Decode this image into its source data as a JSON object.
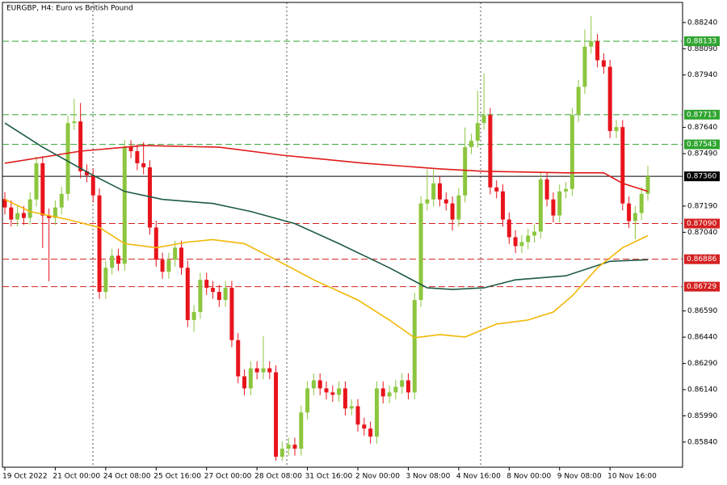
{
  "chart_data": {
    "type": "candlestick",
    "title": "EURGBP, H4:  Euro vs British Pound",
    "up_color": "#8cc63f",
    "down_color": "#e8141c",
    "categories": [
      "19 Oct 2022",
      null,
      null,
      null,
      null,
      null,
      null,
      null,
      "21 Oct 00:00",
      null,
      null,
      null,
      null,
      null,
      null,
      null,
      "24 Oct 08:00",
      null,
      null,
      null,
      null,
      null,
      null,
      null,
      "25 Oct 16:00",
      null,
      null,
      null,
      null,
      null,
      null,
      null,
      "27 Oct 00:00",
      null,
      null,
      null,
      null,
      null,
      null,
      null,
      "28 Oct 08:00",
      null,
      null,
      null,
      null,
      null,
      null,
      null,
      "31 Oct 16:00",
      null,
      null,
      null,
      null,
      null,
      null,
      null,
      "2 Nov 00:00",
      null,
      null,
      null,
      null,
      null,
      null,
      null,
      "3 Nov 08:00",
      null,
      null,
      null,
      null,
      null,
      null,
      null,
      "4 Nov 16:00",
      null,
      null,
      null,
      null,
      null,
      null,
      null,
      "8 Nov 00:00",
      null,
      null,
      null,
      null,
      null,
      null,
      null,
      "9 Nov 08:00",
      null,
      null,
      null,
      null,
      null,
      null,
      null,
      "10 Nov 16:00",
      null,
      null,
      null,
      null,
      null,
      null
    ],
    "open": [
      0.8723,
      0.87182,
      0.87113,
      0.8715,
      0.87122,
      0.87228,
      0.87435,
      0.87136,
      0.87122,
      0.87182,
      0.8726,
      0.87665,
      0.87674,
      0.87389,
      0.87366,
      0.87251,
      0.86699,
      0.86837,
      0.86906,
      0.8686,
      0.87527,
      0.87504,
      0.87435,
      0.87412,
      0.87067,
      0.86883,
      0.86814,
      0.86883,
      0.86952,
      0.86837,
      0.86538,
      0.86584,
      0.86768,
      0.86722,
      0.86699,
      0.86653,
      0.86722,
      0.86423,
      0.86216,
      0.86147,
      0.86262,
      0.86239,
      0.86262,
      0.86239,
      0.85756,
      0.85802,
      0.85825,
      0.85802,
      0.86009,
      0.86147,
      0.86193,
      0.86147,
      0.86124,
      0.8611,
      0.86147,
      0.86032,
      0.86045,
      0.8594,
      0.85917,
      0.85871,
      0.86147,
      0.86101,
      0.86124,
      0.86156,
      0.86193,
      0.86124,
      0.86653,
      0.87205,
      0.87228,
      0.8732,
      0.87228,
      0.87205,
      0.87113,
      0.87251,
      0.87527,
      0.87564,
      0.87665,
      0.87711,
      0.87297,
      0.87274,
      0.87113,
      0.87012,
      0.86961,
      0.86984,
      0.87021,
      0.87044,
      0.87343,
      0.87228,
      0.87136,
      0.87274,
      0.87288,
      0.87711,
      0.87872,
      0.88102,
      0.88134,
      0.88024,
      0.87987,
      0.87619,
      0.87642,
      0.87205,
      0.87104,
      0.8715,
      0.8726
    ],
    "high": [
      0.8727,
      0.87222,
      0.8719,
      0.8719,
      0.87268,
      0.87475,
      0.87475,
      0.87176,
      0.87222,
      0.873,
      0.87705,
      0.87803,
      0.8778,
      0.87429,
      0.87406,
      0.87291,
      0.86877,
      0.86946,
      0.86946,
      0.87567,
      0.87567,
      0.87544,
      0.87555,
      0.87452,
      0.87107,
      0.86923,
      0.86923,
      0.86992,
      0.86992,
      0.86877,
      0.86624,
      0.86808,
      0.86808,
      0.86762,
      0.86739,
      0.86762,
      0.86762,
      0.86463,
      0.86256,
      0.86302,
      0.86302,
      0.86445,
      0.86302,
      0.86279,
      0.85842,
      0.85865,
      0.85865,
      0.86049,
      0.86187,
      0.86233,
      0.86233,
      0.86187,
      0.86164,
      0.86187,
      0.86187,
      0.86085,
      0.86085,
      0.8598,
      0.85957,
      0.86187,
      0.86187,
      0.86164,
      0.86196,
      0.86233,
      0.86233,
      0.86693,
      0.87245,
      0.874,
      0.874,
      0.8736,
      0.87268,
      0.87245,
      0.87291,
      0.8764,
      0.87604,
      0.8785,
      0.8795,
      0.87751,
      0.87337,
      0.87314,
      0.87153,
      0.87052,
      0.87024,
      0.87061,
      0.87084,
      0.87383,
      0.87383,
      0.87268,
      0.87314,
      0.87328,
      0.87751,
      0.87912,
      0.882,
      0.88277,
      0.88174,
      0.88064,
      0.88027,
      0.87682,
      0.87682,
      0.87245,
      0.8719,
      0.873,
      0.8742
    ],
    "low": [
      0.87142,
      0.87073,
      0.87073,
      0.87082,
      0.87082,
      0.87188,
      0.8695,
      0.8676,
      0.87082,
      0.87142,
      0.8722,
      0.87625,
      0.87349,
      0.87326,
      0.87211,
      0.86659,
      0.86659,
      0.86797,
      0.8682,
      0.8682,
      0.87464,
      0.87395,
      0.87372,
      0.87027,
      0.86843,
      0.86774,
      0.86774,
      0.86843,
      0.86797,
      0.86498,
      0.8647,
      0.86544,
      0.86682,
      0.86659,
      0.86613,
      0.86613,
      0.86383,
      0.86176,
      0.86107,
      0.86107,
      0.86199,
      0.86199,
      0.86199,
      0.85733,
      0.85733,
      0.85762,
      0.85762,
      0.85762,
      0.85969,
      0.86107,
      0.86107,
      0.86084,
      0.8607,
      0.8607,
      0.85992,
      0.85992,
      0.859,
      0.85877,
      0.85831,
      0.85831,
      0.86061,
      0.86061,
      0.86084,
      0.86116,
      0.86084,
      0.86084,
      0.86613,
      0.87165,
      0.87188,
      0.87188,
      0.87165,
      0.8705,
      0.87073,
      0.87211,
      0.87487,
      0.87524,
      0.87625,
      0.87257,
      0.87234,
      0.87073,
      0.86972,
      0.86921,
      0.86921,
      0.86944,
      0.86981,
      0.87004,
      0.87188,
      0.87096,
      0.87096,
      0.87234,
      0.87248,
      0.87671,
      0.87832,
      0.88062,
      0.87984,
      0.87947,
      0.87579,
      0.87579,
      0.87165,
      0.87064,
      0.87,
      0.8711,
      0.8722
    ],
    "close": [
      0.87182,
      0.87113,
      0.8715,
      0.87122,
      0.87228,
      0.87435,
      0.87136,
      0.87122,
      0.87182,
      0.8726,
      0.87665,
      0.87674,
      0.87389,
      0.87366,
      0.87251,
      0.86699,
      0.86837,
      0.86906,
      0.8686,
      0.87527,
      0.87504,
      0.87435,
      0.87412,
      0.87067,
      0.86883,
      0.86814,
      0.86883,
      0.86952,
      0.86837,
      0.86538,
      0.86584,
      0.86768,
      0.86722,
      0.86699,
      0.86653,
      0.86722,
      0.86423,
      0.86216,
      0.86147,
      0.86262,
      0.86239,
      0.86262,
      0.86239,
      0.85756,
      0.85802,
      0.85825,
      0.85802,
      0.86009,
      0.86147,
      0.86193,
      0.86147,
      0.86124,
      0.8611,
      0.86147,
      0.86032,
      0.86045,
      0.8594,
      0.85917,
      0.85871,
      0.86147,
      0.86101,
      0.86124,
      0.86156,
      0.86193,
      0.86124,
      0.86653,
      0.87205,
      0.87228,
      0.8732,
      0.87228,
      0.87205,
      0.87113,
      0.87251,
      0.87527,
      0.87564,
      0.87665,
      0.87711,
      0.87297,
      0.87274,
      0.87113,
      0.87012,
      0.86961,
      0.86984,
      0.87021,
      0.87044,
      0.87343,
      0.87228,
      0.87136,
      0.87274,
      0.87288,
      0.87711,
      0.87872,
      0.88102,
      0.88134,
      0.88024,
      0.87987,
      0.87619,
      0.87642,
      0.87205,
      0.87104,
      0.8715,
      0.8726,
      0.8736
    ],
    "lines": [
      {
        "color": "#e01b1b",
        "x": [
          0,
          12,
          22,
          34,
          44,
          57,
          69,
          76,
          89,
          95,
          98,
          102
        ],
        "values": [
          0.87435,
          0.87504,
          0.87536,
          0.87527,
          0.87481,
          0.87435,
          0.87403,
          0.87389,
          0.8738,
          0.8738,
          0.8732,
          0.87274
        ]
      },
      {
        "color": "#1d5a45",
        "x": [
          0,
          6,
          14,
          19,
          25,
          33,
          39,
          46,
          53,
          61,
          67,
          71,
          76,
          81,
          89,
          96,
          102
        ],
        "values": [
          0.87665,
          0.87527,
          0.87366,
          0.87274,
          0.87228,
          0.87205,
          0.87159,
          0.8709,
          0.86975,
          0.86837,
          0.86722,
          0.86713,
          0.86722,
          0.86768,
          0.86791,
          0.86874,
          0.86883
        ]
      },
      {
        "color": "#f2b705",
        "x": [
          0,
          4,
          10,
          15,
          19,
          24,
          29,
          33,
          38,
          43,
          49,
          56,
          61,
          65,
          69,
          73,
          78,
          83,
          87,
          90,
          94,
          98,
          102
        ],
        "values": [
          0.87228,
          0.87159,
          0.87113,
          0.87067,
          0.86975,
          0.86952,
          0.86984,
          0.86998,
          0.86975,
          0.86883,
          0.86768,
          0.86653,
          0.86538,
          0.86437,
          0.86455,
          0.86441,
          0.86515,
          0.86538,
          0.86584,
          0.86676,
          0.86837,
          0.86952,
          0.87021
        ]
      }
    ],
    "levels": [
      {
        "value": 0.88133,
        "label": "0.88133",
        "color": "#2fa52f",
        "style": "dashed"
      },
      {
        "value": 0.87713,
        "label": "0.87713",
        "color": "#2fa52f",
        "style": "dashed"
      },
      {
        "value": 0.87543,
        "label": "0.87543",
        "color": "#2fa52f",
        "style": "dashed"
      },
      {
        "value": 0.8736,
        "label": "0.87360",
        "color": "#000000",
        "style": "solid"
      },
      {
        "value": 0.8709,
        "label": "0.87090",
        "color": "#d42020",
        "style": "dashed"
      },
      {
        "value": 0.86886,
        "label": "0.86886",
        "color": "#d42020",
        "style": "dashed"
      },
      {
        "value": 0.86729,
        "label": "0.86729",
        "color": "#d42020",
        "style": "dashed"
      }
    ],
    "ylim": [
      0.85696,
      0.88355
    ],
    "yticks": [
      {
        "value": 0.8824,
        "label": "0.88240"
      },
      {
        "value": 0.8809,
        "label": "0.88090"
      },
      {
        "value": 0.8794,
        "label": "0.87940"
      },
      {
        "value": 0.8764,
        "label": "0.87640"
      },
      {
        "value": 0.8749,
        "label": "0.87490"
      },
      {
        "value": 0.8719,
        "label": "0.87190"
      },
      {
        "value": 0.8704,
        "label": "0.87040"
      },
      {
        "value": 0.8659,
        "label": "0.86590"
      },
      {
        "value": 0.8644,
        "label": "0.86440"
      },
      {
        "value": 0.8629,
        "label": "0.86290"
      },
      {
        "value": 0.8614,
        "label": "0.86140"
      },
      {
        "value": 0.8599,
        "label": "0.85990"
      },
      {
        "value": 0.8584,
        "label": "0.85840"
      }
    ]
  }
}
